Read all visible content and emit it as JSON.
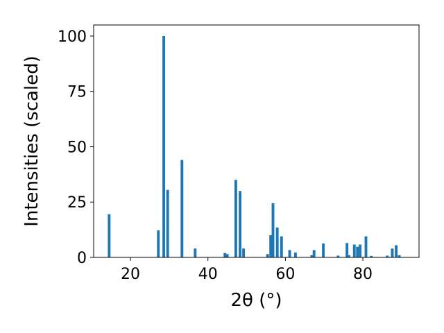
{
  "chart_data": {
    "type": "bar",
    "xlabel": "2θ (°)",
    "ylabel": "Intensities (scaled)",
    "xlim": [
      10.5,
      94.5
    ],
    "ylim": [
      0,
      105
    ],
    "x_ticks": [
      20,
      40,
      60,
      80
    ],
    "y_ticks": [
      0,
      25,
      50,
      75,
      100
    ],
    "grid": false,
    "bar_color": "#1f77b4",
    "bar_width": 0.7,
    "x": [
      14.5,
      27.2,
      28.6,
      29.6,
      33.3,
      36.7,
      44.4,
      45.0,
      47.2,
      48.3,
      49.2,
      55.4,
      56.2,
      56.8,
      57.9,
      59.0,
      61.1,
      62.6,
      66.8,
      67.4,
      69.8,
      73.6,
      75.9,
      76.4,
      77.8,
      78.6,
      79.3,
      80.8,
      82.2,
      86.3,
      87.6,
      88.6,
      89.4
    ],
    "y": [
      19.5,
      12.2,
      100,
      30.5,
      44,
      4,
      2,
      1.5,
      35,
      30,
      4,
      1.5,
      10,
      24.5,
      13.5,
      9.5,
      3.3,
      2.2,
      1,
      3.3,
      6.3,
      0.8,
      6.5,
      1,
      5.8,
      4.8,
      5.8,
      9.5,
      0.7,
      0.8,
      4,
      5.5,
      1
    ]
  }
}
